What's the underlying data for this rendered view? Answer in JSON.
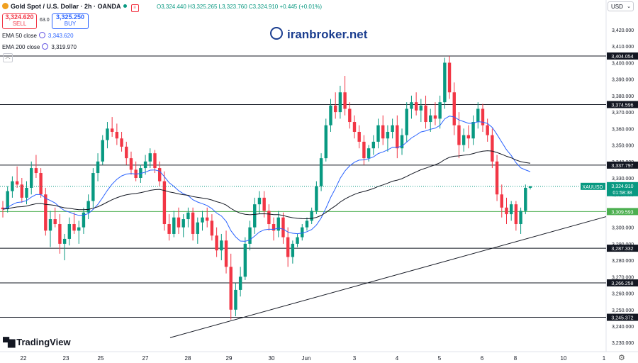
{
  "header": {
    "symbol_title": "Gold Spot / U.S. Dollar · 2h · OANDA",
    "ohlc": "O3,324.440 H3,325.265 L3,323.760 C3,324.910 +0.445 (+0.01%)",
    "sell_price": "3,324.620",
    "sell_label": "SELL",
    "spread": "63.0",
    "buy_price": "3,325.250",
    "buy_label": "BUY",
    "currency": "USD"
  },
  "indicators": [
    {
      "label": "EMA 50 close",
      "value": "3,343.620",
      "color": "#2962ff"
    },
    {
      "label": "EMA 200 close",
      "value": "3,319.970",
      "color": "#131722"
    }
  ],
  "watermark": "iranbroker.net",
  "branding": "TradingView",
  "chart_data": {
    "type": "candlestick",
    "symbol": "XAUUSD",
    "timeframe": "2h",
    "ylim": [
      3225,
      3430
    ],
    "y_ticks": [
      "3,420.000",
      "3,410.000",
      "3,400.000",
      "3,390.000",
      "3,380.000",
      "3,370.000",
      "3,360.000",
      "3,350.000",
      "3,340.000",
      "3,330.000",
      "3,320.000",
      "3,310.000",
      "3,300.000",
      "3,290.000",
      "3,280.000",
      "3,270.000",
      "3,260.000",
      "3,250.000",
      "3,240.000",
      "3,230.000"
    ],
    "x_ticks": [
      "22",
      "23",
      "25",
      "27",
      "28",
      "29",
      "30",
      "Jun",
      "3",
      "4",
      "5",
      "6",
      "8",
      "10",
      "1"
    ],
    "horizontal_levels": [
      {
        "value": 3404.054,
        "label": "3,404.054"
      },
      {
        "value": 3374.596,
        "label": "3,374.596"
      },
      {
        "value": 3337.797,
        "label": "3,337.797"
      },
      {
        "value": 3309.593,
        "label": "3,309.593"
      },
      {
        "value": 3287.332,
        "label": "3,287.332"
      },
      {
        "value": 3266.258,
        "label": "3,266.258"
      },
      {
        "value": 3245.372,
        "label": "3,245.372"
      }
    ],
    "current_price": {
      "symbol": "XAUUSD",
      "value": "3,324.910",
      "countdown": "01:58:38"
    },
    "trendline": {
      "from": [
        "May 28",
        3233
      ],
      "to": [
        "Jun 9",
        3306
      ]
    },
    "candles": [
      [
        3312,
        3316,
        3306,
        3311
      ],
      [
        3311,
        3325,
        3309,
        3322
      ],
      [
        3322,
        3331,
        3318,
        3328
      ],
      [
        3328,
        3337,
        3324,
        3326
      ],
      [
        3326,
        3330,
        3315,
        3318
      ],
      [
        3318,
        3328,
        3314,
        3324
      ],
      [
        3324,
        3340,
        3320,
        3336
      ],
      [
        3336,
        3344,
        3330,
        3333
      ],
      [
        3333,
        3336,
        3318,
        3320
      ],
      [
        3320,
        3324,
        3295,
        3298
      ],
      [
        3298,
        3310,
        3288,
        3305
      ],
      [
        3305,
        3312,
        3300,
        3302
      ],
      [
        3302,
        3308,
        3284,
        3290
      ],
      [
        3290,
        3296,
        3280,
        3293
      ],
      [
        3293,
        3306,
        3289,
        3302
      ],
      [
        3302,
        3309,
        3296,
        3298
      ],
      [
        3298,
        3304,
        3290,
        3300
      ],
      [
        3300,
        3312,
        3296,
        3309
      ],
      [
        3309,
        3320,
        3305,
        3316
      ],
      [
        3316,
        3336,
        3312,
        3333
      ],
      [
        3333,
        3345,
        3328,
        3340
      ],
      [
        3340,
        3356,
        3338,
        3353
      ],
      [
        3353,
        3364,
        3348,
        3360
      ],
      [
        3360,
        3367,
        3355,
        3358
      ],
      [
        3358,
        3363,
        3350,
        3354
      ],
      [
        3354,
        3358,
        3346,
        3349
      ],
      [
        3349,
        3352,
        3338,
        3342
      ],
      [
        3342,
        3346,
        3332,
        3335
      ],
      [
        3335,
        3340,
        3328,
        3330
      ],
      [
        3330,
        3338,
        3327,
        3336
      ],
      [
        3336,
        3344,
        3332,
        3340
      ],
      [
        3340,
        3348,
        3336,
        3345
      ],
      [
        3345,
        3347,
        3333,
        3336
      ],
      [
        3336,
        3340,
        3325,
        3328
      ],
      [
        3328,
        3334,
        3298,
        3302
      ],
      [
        3302,
        3308,
        3292,
        3296
      ],
      [
        3296,
        3310,
        3294,
        3306
      ],
      [
        3306,
        3312,
        3296,
        3300
      ],
      [
        3300,
        3308,
        3294,
        3305
      ],
      [
        3305,
        3312,
        3300,
        3309
      ],
      [
        3309,
        3312,
        3292,
        3296
      ],
      [
        3296,
        3306,
        3290,
        3303
      ],
      [
        3303,
        3310,
        3298,
        3306
      ],
      [
        3306,
        3312,
        3300,
        3304
      ],
      [
        3304,
        3308,
        3292,
        3295
      ],
      [
        3295,
        3300,
        3282,
        3286
      ],
      [
        3286,
        3296,
        3280,
        3292
      ],
      [
        3292,
        3298,
        3272,
        3276
      ],
      [
        3276,
        3284,
        3244,
        3250
      ],
      [
        3250,
        3266,
        3246,
        3262
      ],
      [
        3262,
        3276,
        3258,
        3270
      ],
      [
        3270,
        3294,
        3268,
        3290
      ],
      [
        3290,
        3304,
        3286,
        3300
      ],
      [
        3300,
        3318,
        3296,
        3314
      ],
      [
        3314,
        3322,
        3308,
        3318
      ],
      [
        3318,
        3322,
        3306,
        3310
      ],
      [
        3310,
        3314,
        3298,
        3302
      ],
      [
        3302,
        3306,
        3292,
        3298
      ],
      [
        3298,
        3310,
        3294,
        3306
      ],
      [
        3306,
        3309,
        3290,
        3294
      ],
      [
        3294,
        3300,
        3276,
        3282
      ],
      [
        3282,
        3292,
        3278,
        3290
      ],
      [
        3290,
        3296,
        3288,
        3294
      ],
      [
        3294,
        3302,
        3292,
        3300
      ],
      [
        3300,
        3306,
        3298,
        3304
      ],
      [
        3304,
        3312,
        3302,
        3310
      ],
      [
        3310,
        3328,
        3308,
        3325
      ],
      [
        3325,
        3345,
        3322,
        3342
      ],
      [
        3342,
        3366,
        3340,
        3362
      ],
      [
        3362,
        3378,
        3358,
        3374
      ],
      [
        3374,
        3382,
        3366,
        3370
      ],
      [
        3370,
        3386,
        3366,
        3382
      ],
      [
        3382,
        3392,
        3368,
        3372
      ],
      [
        3372,
        3376,
        3360,
        3364
      ],
      [
        3364,
        3368,
        3354,
        3358
      ],
      [
        3358,
        3362,
        3348,
        3352
      ],
      [
        3352,
        3356,
        3338,
        3342
      ],
      [
        3342,
        3350,
        3340,
        3348
      ],
      [
        3348,
        3356,
        3344,
        3352
      ],
      [
        3352,
        3366,
        3348,
        3362
      ],
      [
        3362,
        3368,
        3350,
        3354
      ],
      [
        3354,
        3362,
        3346,
        3358
      ],
      [
        3358,
        3366,
        3354,
        3362
      ],
      [
        3362,
        3368,
        3342,
        3348
      ],
      [
        3348,
        3360,
        3344,
        3356
      ],
      [
        3356,
        3376,
        3352,
        3372
      ],
      [
        3372,
        3380,
        3366,
        3376
      ],
      [
        3376,
        3382,
        3368,
        3371
      ],
      [
        3371,
        3378,
        3364,
        3374
      ],
      [
        3374,
        3380,
        3360,
        3364
      ],
      [
        3364,
        3372,
        3358,
        3368
      ],
      [
        3368,
        3376,
        3362,
        3366
      ],
      [
        3366,
        3380,
        3360,
        3376
      ],
      [
        3376,
        3403,
        3372,
        3400
      ],
      [
        3400,
        3404,
        3378,
        3382
      ],
      [
        3382,
        3388,
        3356,
        3362
      ],
      [
        3362,
        3370,
        3342,
        3350
      ],
      [
        3350,
        3360,
        3346,
        3356
      ],
      [
        3356,
        3362,
        3348,
        3354
      ],
      [
        3354,
        3368,
        3350,
        3364
      ],
      [
        3364,
        3376,
        3360,
        3372
      ],
      [
        3372,
        3375,
        3358,
        3362
      ],
      [
        3362,
        3366,
        3352,
        3356
      ],
      [
        3356,
        3360,
        3336,
        3340
      ],
      [
        3340,
        3344,
        3316,
        3320
      ],
      [
        3320,
        3326,
        3306,
        3312
      ],
      [
        3312,
        3318,
        3302,
        3308
      ],
      [
        3308,
        3316,
        3304,
        3314
      ],
      [
        3314,
        3316,
        3298,
        3302
      ],
      [
        3302,
        3312,
        3296,
        3310
      ],
      [
        3310,
        3326,
        3308,
        3324
      ],
      [
        3324,
        3325,
        3323,
        3325
      ]
    ]
  }
}
